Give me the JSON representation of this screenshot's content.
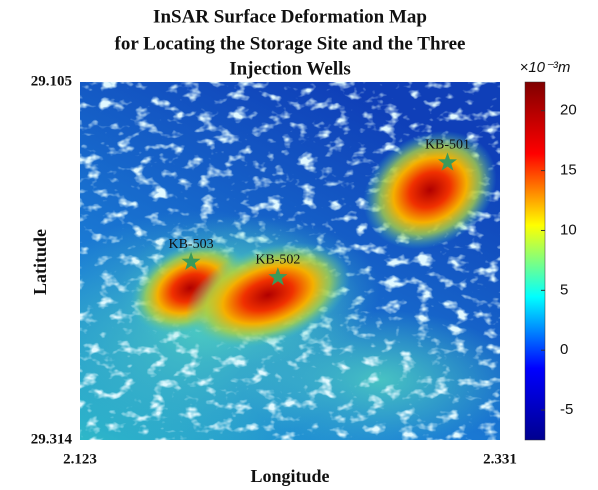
{
  "chart_data": {
    "type": "heatmap",
    "title": [
      "InSAR Surface Deformation Map",
      "for Locating the Storage Site and the Three",
      "Injection Wells"
    ],
    "x_label": "Longitude",
    "y_label": "Latitude",
    "xlim": [
      2.123,
      2.331
    ],
    "xticks": [
      2.123,
      2.331
    ],
    "ylim": [
      29.314,
      29.105
    ],
    "yticks": [
      29.105,
      29.314
    ],
    "colorbar_label": "×10⁻³m",
    "clim": [
      -7.5,
      22.4
    ],
    "cticks": [
      -5,
      0,
      5,
      10,
      15,
      20
    ],
    "colormap": "jet",
    "wells": {
      "names": [
        "KB-501",
        "KB-502",
        "KB-503"
      ],
      "x": [
        2.305,
        2.221,
        2.178
      ],
      "y": [
        29.152,
        29.219,
        29.21
      ],
      "color": "#3a9a5a"
    }
  }
}
